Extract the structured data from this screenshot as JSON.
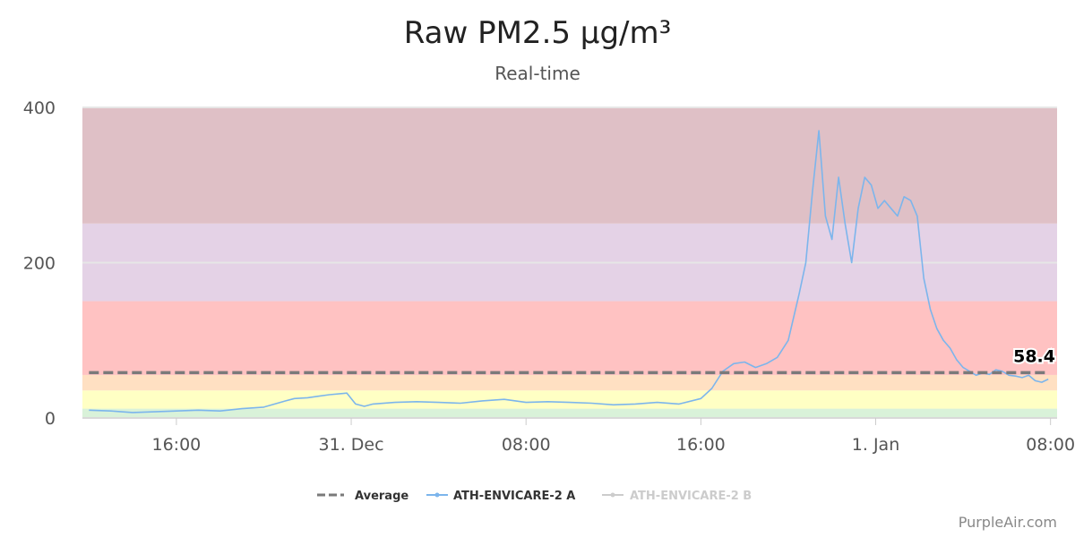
{
  "chart_data": {
    "type": "line",
    "title": "Raw PM2.5 µg/m³",
    "subtitle": "Real-time",
    "credit": "PurpleAir.com",
    "xlabel": "",
    "ylabel": "",
    "x_axis": {
      "unit": "hours since 30 Dec 12:00",
      "range": [
        -0.3,
        44.3
      ],
      "ticks": [
        {
          "value": 4,
          "label": "16:00"
        },
        {
          "value": 12,
          "label": "31. Dec"
        },
        {
          "value": 20,
          "label": "08:00"
        },
        {
          "value": 28,
          "label": "16:00"
        },
        {
          "value": 36,
          "label": "1. Jan"
        },
        {
          "value": 44,
          "label": "08:00"
        }
      ]
    },
    "y_axis": {
      "range": [
        0,
        400
      ],
      "ticks": [
        {
          "value": 0,
          "label": "0"
        },
        {
          "value": 200,
          "label": "200"
        },
        {
          "value": 400,
          "label": "400"
        }
      ],
      "grid": true
    },
    "aqi_bands": [
      {
        "from": 0,
        "to": 12,
        "color": "#d9f2d9"
      },
      {
        "from": 12,
        "to": 35.4,
        "color": "#ffffc4"
      },
      {
        "from": 35.4,
        "to": 55.4,
        "color": "#ffe0c2"
      },
      {
        "from": 55.4,
        "to": 150.4,
        "color": "#ffc2c2"
      },
      {
        "from": 150.4,
        "to": 250.4,
        "color": "#e4d2e6"
      },
      {
        "from": 250.4,
        "to": 400,
        "color": "#dfc0c6"
      }
    ],
    "legend": {
      "position": "bottom-center",
      "items": [
        {
          "label": "Average",
          "color": "#7a7a7a",
          "style": "dashed",
          "active": true
        },
        {
          "label": "ATH-ENVICARE-2 A",
          "color": "#7cb5ec",
          "style": "line-marker",
          "active": true
        },
        {
          "label": "ATH-ENVICARE-2 B",
          "color": "#cccccc",
          "style": "line-marker",
          "active": false
        }
      ]
    },
    "average": {
      "name": "Average",
      "value": 58.4,
      "label": "58.4",
      "color": "#7a7a7a"
    },
    "series": [
      {
        "name": "ATH-ENVICARE-2 A",
        "color": "#7cb5ec",
        "x": [
          0,
          1,
          2,
          3,
          4,
          5,
          6,
          7,
          8,
          9,
          9.4,
          10,
          10.5,
          11,
          11.8,
          12.2,
          12.6,
          13,
          14,
          15,
          16,
          17,
          18,
          19,
          20,
          21,
          22,
          23,
          24,
          25,
          26,
          27,
          28,
          28.5,
          29,
          29.5,
          30,
          30.5,
          31,
          31.5,
          32,
          32.5,
          32.8,
          33.1,
          33.4,
          33.7,
          34,
          34.3,
          34.6,
          34.9,
          35.2,
          35.5,
          35.8,
          36.1,
          36.4,
          36.7,
          37,
          37.3,
          37.6,
          37.9,
          38.2,
          38.5,
          38.8,
          39.1,
          39.4,
          39.7,
          40,
          40.3,
          40.6,
          40.9,
          41.2,
          41.5,
          41.8,
          42.1,
          42.4,
          42.7,
          43,
          43.3,
          43.6,
          43.9
        ],
        "y": [
          10,
          9,
          7,
          8,
          9,
          10,
          9,
          12,
          14,
          22,
          25,
          26,
          28,
          30,
          32,
          18,
          15,
          18,
          20,
          21,
          20,
          19,
          22,
          24,
          20,
          21,
          20,
          19,
          17,
          18,
          20,
          18,
          25,
          38,
          60,
          70,
          72,
          65,
          70,
          78,
          100,
          160,
          200,
          290,
          370,
          260,
          230,
          310,
          250,
          200,
          270,
          310,
          300,
          270,
          280,
          270,
          260,
          285,
          280,
          260,
          180,
          140,
          115,
          100,
          90,
          75,
          65,
          60,
          55,
          58,
          56,
          62,
          60,
          55,
          54,
          52,
          55,
          48,
          46,
          50
        ]
      }
    ]
  }
}
